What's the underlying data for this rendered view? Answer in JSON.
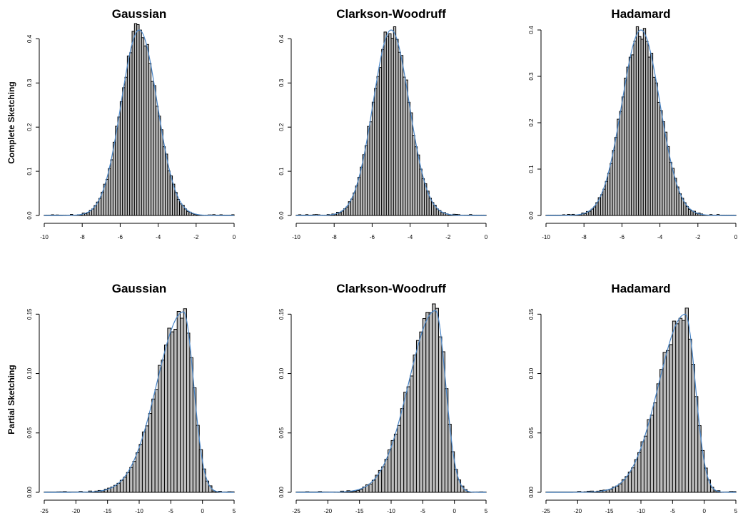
{
  "row_labels": [
    "Complete Sketching",
    "Partial Sketching"
  ],
  "chart_data": [
    {
      "type": "histogram",
      "row": 0,
      "col": 0,
      "title": "Gaussian",
      "xlim": [
        -10,
        0
      ],
      "ylim": [
        0,
        0.4
      ],
      "ymax_axis": 0.42,
      "xticks": [
        -10,
        -8,
        -6,
        -4,
        -2,
        0
      ],
      "yticks": [
        0.0,
        0.1,
        0.2,
        0.3,
        0.4
      ],
      "bin_range": [
        -10,
        0
      ],
      "bin_count": 80,
      "density_mean": -5.0,
      "density_sd": 0.95,
      "density_skew": 0.0,
      "peak": 0.42,
      "series": [
        {
          "density": "curve"
        }
      ]
    },
    {
      "type": "histogram",
      "row": 0,
      "col": 1,
      "title": "Clarkson-Woodruff",
      "xlim": [
        -10,
        0
      ],
      "ylim": [
        0,
        0.4
      ],
      "ymax_axis": 0.42,
      "xticks": [
        -10,
        -8,
        -6,
        -4,
        -2,
        0
      ],
      "yticks": [
        0.0,
        0.1,
        0.2,
        0.3,
        0.4
      ],
      "bin_range": [
        -10,
        0
      ],
      "bin_count": 80,
      "density_mean": -5.0,
      "density_sd": 0.95,
      "density_skew": 0.0,
      "peak": 0.42,
      "series": [
        {
          "density": "curve"
        }
      ]
    },
    {
      "type": "histogram",
      "row": 0,
      "col": 2,
      "title": "Hadamard",
      "xlim": [
        -10,
        0
      ],
      "ylim": [
        0,
        0.4
      ],
      "ymax_axis": 0.4,
      "xticks": [
        -10,
        -8,
        -6,
        -4,
        -2,
        0
      ],
      "yticks": [
        0.0,
        0.1,
        0.2,
        0.3,
        0.4
      ],
      "bin_range": [
        -10,
        0
      ],
      "bin_count": 80,
      "density_mean": -5.0,
      "density_sd": 1.0,
      "density_skew": 0.0,
      "peak": 0.4,
      "series": [
        {
          "density": "curve"
        }
      ]
    },
    {
      "type": "histogram",
      "row": 1,
      "col": 0,
      "title": "Gaussian",
      "xlim": [
        -25,
        5
      ],
      "ylim": [
        0,
        0.15
      ],
      "ymax_axis": 0.155,
      "xticks": [
        -25,
        -20,
        -15,
        -10,
        -5,
        0,
        5
      ],
      "yticks": [
        0.0,
        0.05,
        0.1,
        0.15
      ],
      "bin_range": [
        -25,
        5
      ],
      "bin_count": 60,
      "density_mean": -3.0,
      "density_sd_left": 4.2,
      "density_sd_right": 1.6,
      "density_skew": 1.0,
      "peak": 0.152,
      "series": [
        {
          "density": "curve"
        }
      ]
    },
    {
      "type": "histogram",
      "row": 1,
      "col": 1,
      "title": "Clarkson-Woodruff",
      "xlim": [
        -25,
        5
      ],
      "ylim": [
        0,
        0.15
      ],
      "ymax_axis": 0.155,
      "xticks": [
        -25,
        -20,
        -15,
        -10,
        -5,
        0,
        5
      ],
      "yticks": [
        0.0,
        0.05,
        0.1,
        0.15
      ],
      "bin_range": [
        -25,
        5
      ],
      "bin_count": 60,
      "density_mean": -3.0,
      "density_sd_left": 4.2,
      "density_sd_right": 1.6,
      "density_skew": 1.0,
      "peak": 0.153,
      "series": [
        {
          "density": "curve"
        }
      ]
    },
    {
      "type": "histogram",
      "row": 1,
      "col": 2,
      "title": "Hadamard",
      "xlim": [
        -25,
        5
      ],
      "ylim": [
        0,
        0.15
      ],
      "ymax_axis": 0.155,
      "xticks": [
        -25,
        -20,
        -15,
        -10,
        -5,
        0,
        5
      ],
      "yticks": [
        0.0,
        0.05,
        0.1,
        0.15
      ],
      "bin_range": [
        -25,
        5
      ],
      "bin_count": 60,
      "density_mean": -3.0,
      "density_sd_left": 4.2,
      "density_sd_right": 1.6,
      "density_skew": 1.0,
      "peak": 0.15,
      "series": [
        {
          "density": "curve"
        }
      ]
    }
  ]
}
